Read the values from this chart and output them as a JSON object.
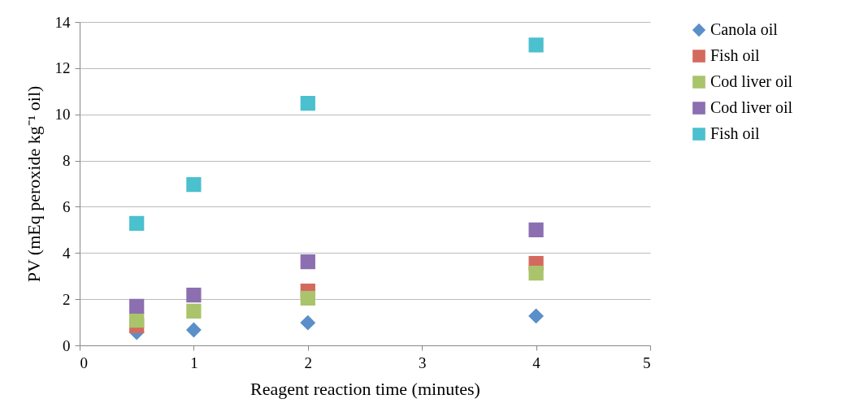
{
  "chart_data": {
    "type": "scatter",
    "xlabel": "Reagent reaction time (minutes)",
    "ylabel": "PV (mEq peroxide kg⁻¹ oil)",
    "x": [
      0.5,
      1,
      2,
      4
    ],
    "series": [
      {
        "name": "Canola oil",
        "color": "#5b8fc9",
        "marker": "diamond",
        "values": [
          0.56,
          0.67,
          0.98,
          1.27
        ]
      },
      {
        "name": "Fish oil",
        "color": "#d46a5e",
        "marker": "square",
        "values": [
          0.85,
          null,
          2.35,
          3.55
        ]
      },
      {
        "name": "Cod liver oil",
        "color": "#a9c46a",
        "marker": "square",
        "values": [
          1.09,
          1.48,
          2.04,
          3.13
        ]
      },
      {
        "name": "Cod liver oil",
        "color": "#8c6fb0",
        "marker": "square",
        "values": [
          1.69,
          2.18,
          3.62,
          5.0
        ]
      },
      {
        "name": "Fish oil",
        "color": "#4bc0cf",
        "marker": "square",
        "values": [
          5.28,
          6.96,
          10.48,
          13.0
        ]
      }
    ],
    "xlim": [
      0,
      5
    ],
    "xticks": [
      0,
      1,
      2,
      3,
      4,
      5
    ],
    "ylim": [
      0,
      14
    ],
    "yticks": [
      0,
      2,
      4,
      6,
      8,
      10,
      12,
      14
    ],
    "grid": "y",
    "legend": "right"
  }
}
